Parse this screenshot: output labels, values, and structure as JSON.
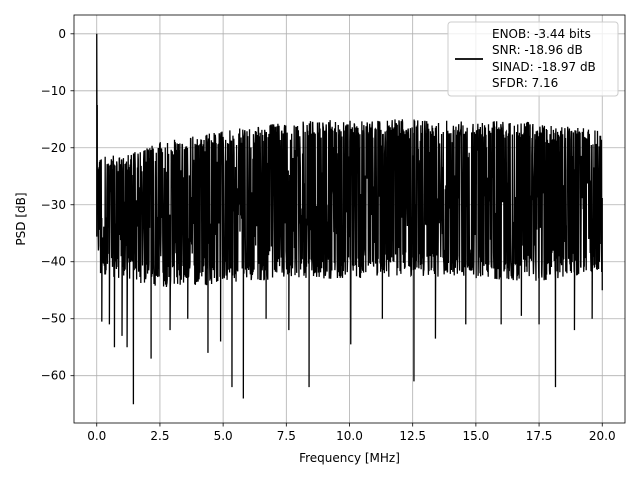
{
  "chart_data": {
    "type": "line",
    "title": "",
    "xlabel": "Frequency [MHz]",
    "ylabel": "PSD [dB]",
    "xlim": [
      -0.9,
      20.9
    ],
    "ylim": [
      -68.3,
      3.3
    ],
    "x_ticks": [
      0.0,
      2.5,
      5.0,
      7.5,
      10.0,
      12.5,
      15.0,
      17.5,
      20.0
    ],
    "x_tick_labels": [
      "0.0",
      "2.5",
      "5.0",
      "7.5",
      "10.0",
      "12.5",
      "15.0",
      "17.5",
      "20.0"
    ],
    "y_ticks": [
      0,
      -10,
      -20,
      -30,
      -40,
      -50,
      -60
    ],
    "y_tick_labels": [
      "0",
      "−10",
      "−20",
      "−30",
      "−40",
      "−50",
      "−60"
    ],
    "grid": true,
    "legend": {
      "placement": "upper-right",
      "lines": [
        "ENOB: -3.44 bits",
        "SNR: -18.96 dB",
        "SINAD: -18.97 dB",
        "SFDR: 7.16"
      ]
    },
    "series": [
      {
        "color": "#000000",
        "style": "dense noise spectrum",
        "x_range": [
          0.0,
          20.0
        ],
        "points": [
          [
            0.0,
            0.0
          ],
          [
            0.02,
            -12.5
          ],
          [
            0.08,
            -27.5
          ],
          [
            0.15,
            -42.0
          ],
          [
            0.2,
            -50.5
          ],
          [
            0.5,
            -51.0
          ],
          [
            0.7,
            -55.0
          ],
          [
            1.0,
            -53.0
          ],
          [
            1.2,
            -55.0
          ],
          [
            1.45,
            -65.0
          ],
          [
            2.15,
            -57.0
          ],
          [
            2.9,
            -52.0
          ],
          [
            3.6,
            -50.0
          ],
          [
            4.4,
            -56.0
          ],
          [
            4.9,
            -54.0
          ],
          [
            5.35,
            -62.0
          ],
          [
            5.8,
            -64.0
          ],
          [
            6.7,
            -50.0
          ],
          [
            7.6,
            -52.0
          ],
          [
            8.4,
            -62.0
          ],
          [
            10.05,
            -54.5
          ],
          [
            11.3,
            -50.0
          ],
          [
            12.55,
            -61.0
          ],
          [
            13.4,
            -53.5
          ],
          [
            14.6,
            -51.0
          ],
          [
            16.0,
            -51.0
          ],
          [
            16.8,
            -49.5
          ],
          [
            17.5,
            -51.0
          ],
          [
            18.15,
            -62.0
          ],
          [
            18.9,
            -52.0
          ],
          [
            19.6,
            -50.0
          ],
          [
            20.0,
            -45.0
          ]
        ],
        "noise_upper": [
          [
            0.0,
            -21.0
          ],
          [
            1.0,
            -21.5
          ],
          [
            2.5,
            -19.0
          ],
          [
            5.0,
            -17.0
          ],
          [
            7.5,
            -15.5
          ],
          [
            10.0,
            -15.0
          ],
          [
            12.5,
            -15.0
          ],
          [
            15.0,
            -15.0
          ],
          [
            17.5,
            -15.5
          ],
          [
            20.0,
            -17.0
          ]
        ],
        "noise_lower": [
          [
            0.0,
            -42.0
          ],
          [
            2.5,
            -44.5
          ],
          [
            5.0,
            -44.0
          ],
          [
            7.5,
            -43.0
          ],
          [
            10.0,
            -43.0
          ],
          [
            12.5,
            -42.5
          ],
          [
            15.0,
            -43.0
          ],
          [
            17.5,
            -43.5
          ],
          [
            20.0,
            -42.0
          ]
        ]
      }
    ]
  }
}
